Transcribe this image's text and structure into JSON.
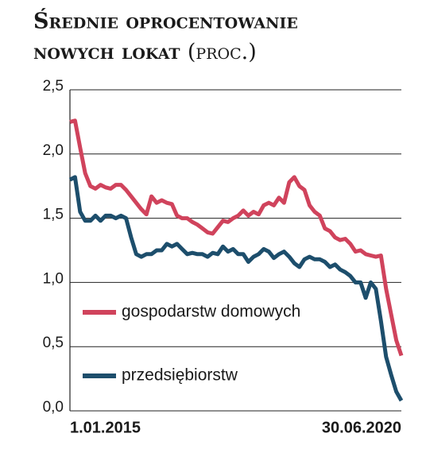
{
  "chart_data": {
    "type": "line",
    "title": [
      "Średnie oprocentowanie",
      "nowych lokat"
    ],
    "subtitle": "(proc.)",
    "categories": [
      "1.01.2015",
      null,
      null,
      null,
      null,
      null,
      null,
      null,
      null,
      null,
      null,
      null,
      null,
      null,
      null,
      null,
      null,
      null,
      null,
      null,
      null,
      null,
      null,
      null,
      null,
      null,
      null,
      null,
      null,
      null,
      null,
      null,
      null,
      null,
      null,
      null,
      null,
      null,
      null,
      null,
      null,
      null,
      null,
      null,
      null,
      null,
      null,
      null,
      null,
      null,
      null,
      null,
      null,
      null,
      null,
      null,
      null,
      null,
      null,
      null,
      null,
      null,
      null,
      null,
      null,
      "30.06.2020"
    ],
    "series": [
      {
        "name": "gospodarstw domowych",
        "color": "#d0435c",
        "values": [
          2.25,
          2.26,
          2.05,
          1.85,
          1.75,
          1.73,
          1.76,
          1.74,
          1.73,
          1.76,
          1.76,
          1.72,
          1.67,
          1.62,
          1.57,
          1.53,
          1.67,
          1.62,
          1.64,
          1.62,
          1.61,
          1.52,
          1.5,
          1.5,
          1.47,
          1.45,
          1.42,
          1.39,
          1.38,
          1.43,
          1.48,
          1.47,
          1.5,
          1.52,
          1.56,
          1.52,
          1.55,
          1.53,
          1.6,
          1.62,
          1.6,
          1.66,
          1.62,
          1.78,
          1.82,
          1.75,
          1.72,
          1.6,
          1.55,
          1.52,
          1.42,
          1.4,
          1.35,
          1.33,
          1.34,
          1.3,
          1.24,
          1.25,
          1.22,
          1.21,
          1.2,
          1.21,
          0.95,
          0.75,
          0.55,
          0.43
        ]
      },
      {
        "name": "przedsiębiorstw",
        "color": "#1d4e6c",
        "values": [
          1.8,
          1.82,
          1.55,
          1.48,
          1.48,
          1.52,
          1.48,
          1.52,
          1.52,
          1.5,
          1.52,
          1.5,
          1.35,
          1.22,
          1.2,
          1.22,
          1.22,
          1.25,
          1.25,
          1.3,
          1.28,
          1.3,
          1.26,
          1.22,
          1.23,
          1.22,
          1.22,
          1.2,
          1.23,
          1.22,
          1.28,
          1.24,
          1.26,
          1.22,
          1.22,
          1.16,
          1.2,
          1.22,
          1.26,
          1.24,
          1.19,
          1.22,
          1.24,
          1.2,
          1.15,
          1.12,
          1.18,
          1.2,
          1.18,
          1.18,
          1.16,
          1.12,
          1.14,
          1.1,
          1.08,
          1.05,
          1.0,
          1.0,
          0.88,
          1.0,
          0.95,
          0.7,
          0.42,
          0.28,
          0.15,
          0.08
        ]
      }
    ],
    "ylim": [
      0,
      2.5
    ],
    "yticks": [
      {
        "value": 0,
        "label": "0,0"
      },
      {
        "value": 0.5,
        "label": "0,5"
      },
      {
        "value": 1,
        "label": "1,0"
      },
      {
        "value": 1.5,
        "label": "1,5"
      },
      {
        "value": 2,
        "label": "2,0"
      },
      {
        "value": 2.5,
        "label": "2,5"
      }
    ],
    "grid": true
  }
}
